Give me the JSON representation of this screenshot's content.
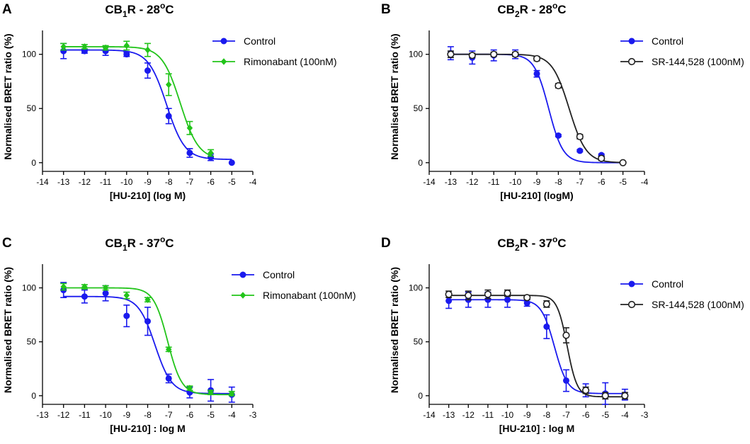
{
  "chart_data": [
    {
      "id": "A",
      "type": "scatter",
      "panel_letter": "A",
      "title_main": "CB",
      "title_sub": "1",
      "title_mid": "R - 28",
      "title_sup": "o",
      "title_end": "C",
      "xlabel": "[HU-210] (log M)",
      "ylabel": "Normalised BRET ratio (%)",
      "xlim": [
        -14,
        -4
      ],
      "ylim": [
        -8,
        122
      ],
      "xticks": [
        -14,
        -13,
        -12,
        -11,
        -10,
        -9,
        -8,
        -7,
        -6,
        -5,
        -4
      ],
      "yticks": [
        0,
        50,
        100
      ],
      "legend_position": "top-right",
      "series": [
        {
          "name": "Control",
          "color": "#1a1aee",
          "marker": "filled-circle",
          "x": [
            -13,
            -12,
            -11,
            -10,
            -9,
            -8,
            -7,
            -6,
            -5
          ],
          "y": [
            103,
            103,
            103,
            100,
            85,
            43,
            9,
            5,
            0
          ],
          "err": [
            7,
            2,
            4,
            2,
            7,
            7,
            4,
            3,
            0
          ],
          "fit": {
            "top": 104,
            "bottom": 3,
            "logEC50": -8.1,
            "hill": 1
          }
        },
        {
          "name": "Rimonabant (100nM)",
          "color": "#22c41a",
          "marker": "filled-diamond",
          "x": [
            -13,
            -12,
            -11,
            -10,
            -9,
            -8,
            -7,
            -6
          ],
          "y": [
            107,
            107,
            106,
            108,
            104,
            72,
            32,
            9
          ],
          "err": [
            3,
            2,
            2,
            4,
            6,
            10,
            6,
            3
          ],
          "fit": {
            "top": 107,
            "bottom": 3,
            "logEC50": -7.45,
            "hill": 1
          }
        }
      ]
    },
    {
      "id": "B",
      "type": "scatter",
      "panel_letter": "B",
      "title_main": "CB",
      "title_sub": "2",
      "title_mid": "R - 28",
      "title_sup": "o",
      "title_end": "C",
      "xlabel": "[HU-210] (logM)",
      "ylabel": "Normalised BRET ratio (%)",
      "xlim": [
        -14,
        -4
      ],
      "ylim": [
        -8,
        122
      ],
      "xticks": [
        -14,
        -13,
        -12,
        -11,
        -10,
        -9,
        -8,
        -7,
        -6,
        -5,
        -4
      ],
      "yticks": [
        0,
        50,
        100
      ],
      "legend_position": "top-right",
      "series": [
        {
          "name": "Control",
          "color": "#1a1aee",
          "marker": "filled-circle",
          "x": [
            -13,
            -12,
            -11,
            -10,
            -9,
            -8,
            -7,
            -6,
            -5
          ],
          "y": [
            101,
            97,
            99,
            100,
            82,
            25,
            11,
            7,
            0
          ],
          "err": [
            6,
            6,
            5,
            4,
            3,
            1,
            1,
            1,
            0
          ],
          "fit": {
            "top": 100,
            "bottom": 0,
            "logEC50": -8.45,
            "hill": 1.3
          }
        },
        {
          "name": "SR-144,528 (100nM)",
          "color": "#222222",
          "marker": "open-circle",
          "x": [
            -13,
            -12,
            -11,
            -10,
            -9,
            -8,
            -7,
            -6,
            -5
          ],
          "y": [
            100,
            99,
            100,
            100,
            96,
            71,
            24,
            4,
            0
          ],
          "err": [
            3,
            2,
            2,
            2,
            2,
            2,
            2,
            2,
            0
          ],
          "fit": {
            "top": 100,
            "bottom": 0,
            "logEC50": -7.5,
            "hill": 1.1
          }
        }
      ]
    },
    {
      "id": "C",
      "type": "scatter",
      "panel_letter": "C",
      "title_main": "CB",
      "title_sub": "1",
      "title_mid": "R - 37",
      "title_sup": "o",
      "title_end": "C",
      "xlabel": "[HU-210] : log M",
      "ylabel": "Normalised BRET ratio (%)",
      "xlim": [
        -13,
        -3
      ],
      "ylim": [
        -8,
        122
      ],
      "xticks": [
        -13,
        -12,
        -11,
        -10,
        -9,
        -8,
        -7,
        -6,
        -5,
        -4,
        -3
      ],
      "yticks": [
        0,
        50,
        100
      ],
      "legend_position": "top-right",
      "series": [
        {
          "name": "Control",
          "color": "#1a1aee",
          "marker": "filled-circle",
          "x": [
            -12,
            -11,
            -10,
            -9,
            -8,
            -7,
            -6,
            -5,
            -4
          ],
          "y": [
            98,
            92,
            95,
            74,
            69,
            16,
            3,
            5,
            1
          ],
          "err": [
            7,
            6,
            7,
            10,
            13,
            4,
            5,
            10,
            7
          ],
          "fit": {
            "top": 92,
            "bottom": 2,
            "logEC50": -7.65,
            "hill": 1.1
          }
        },
        {
          "name": "Rimonabant (100nM)",
          "color": "#22c41a",
          "marker": "filled-diamond",
          "x": [
            -12,
            -11,
            -10,
            -9,
            -8,
            -7,
            -6,
            -5,
            -4
          ],
          "y": [
            101,
            101,
            100,
            93,
            89,
            43,
            7,
            3,
            2
          ],
          "err": [
            3,
            2,
            2,
            3,
            2,
            2,
            2,
            2,
            2
          ],
          "fit": {
            "top": 100,
            "bottom": 1,
            "logEC50": -7.05,
            "hill": 1.3
          }
        }
      ]
    },
    {
      "id": "D",
      "type": "scatter",
      "panel_letter": "D",
      "title_main": "CB",
      "title_sub": "2",
      "title_mid": "R - 37",
      "title_sup": "o",
      "title_end": "C",
      "xlabel": "[HU-210] : log M",
      "ylabel": "Normalised BRET ratio (%)",
      "xlim": [
        -14,
        -3
      ],
      "ylim": [
        -8,
        122
      ],
      "xticks": [
        -14,
        -13,
        -12,
        -11,
        -10,
        -9,
        -8,
        -7,
        -6,
        -5,
        -4,
        -3
      ],
      "yticks": [
        0,
        50,
        100
      ],
      "legend_position": "top-right",
      "series": [
        {
          "name": "Control",
          "color": "#1a1aee",
          "marker": "filled-circle",
          "x": [
            -13,
            -12,
            -11,
            -10,
            -9,
            -8,
            -7,
            -6,
            -5,
            -4
          ],
          "y": [
            88,
            89,
            89,
            89,
            86,
            64,
            14,
            5,
            2,
            1
          ],
          "err": [
            7,
            7,
            7,
            7,
            3,
            11,
            10,
            6,
            10,
            5
          ],
          "fit": {
            "top": 89,
            "bottom": 2,
            "logEC50": -7.6,
            "hill": 1.3
          }
        },
        {
          "name": "SR-144,528 (100nM)",
          "color": "#222222",
          "marker": "open-circle",
          "x": [
            -13,
            -12,
            -11,
            -10,
            -9,
            -8,
            -7,
            -6,
            -5,
            -4
          ],
          "y": [
            94,
            93,
            94,
            95,
            91,
            85,
            56,
            5,
            0,
            0
          ],
          "err": [
            3,
            4,
            4,
            3,
            2,
            3,
            7,
            3,
            3,
            3
          ],
          "fit": {
            "top": 93,
            "bottom": -1,
            "logEC50": -6.95,
            "hill": 1.7
          }
        }
      ]
    }
  ]
}
